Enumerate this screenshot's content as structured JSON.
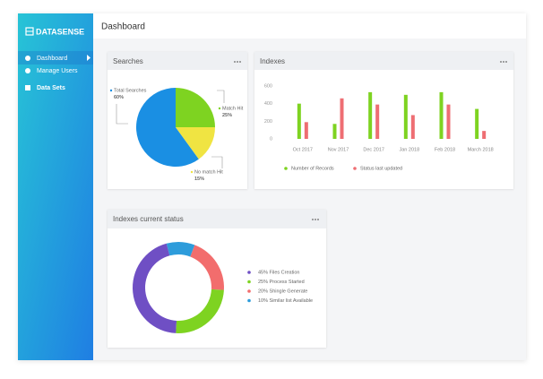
{
  "sidebar": {
    "brand": "DATASENSE",
    "nav": [
      "Dashboard",
      "Manage Users",
      "Data Sets"
    ]
  },
  "header": {
    "title": "Dashboard"
  },
  "chart_data": [
    {
      "type": "pie",
      "title": "Searches",
      "categories": [
        "Total Searches",
        "Match Hit",
        "No match Hit"
      ],
      "values": [
        60,
        25,
        15
      ],
      "value_labels": [
        "60%",
        "25%",
        "15%"
      ],
      "colors": [
        "#1a8fe3",
        "#7ed321",
        "#f0e442"
      ]
    },
    {
      "type": "bar",
      "title": "Indexes",
      "categories": [
        "Oct 2017",
        "Nov 2017",
        "Dec 2017",
        "Jan 2018",
        "Feb 2018",
        "March 2018"
      ],
      "series": [
        {
          "name": "Number of Records",
          "color": "#7ed321",
          "values": [
            400,
            170,
            530,
            500,
            530,
            340
          ]
        },
        {
          "name": "Status last updated",
          "color": "#ee6e73",
          "values": [
            190,
            460,
            390,
            270,
            390,
            90
          ]
        }
      ],
      "ylim": [
        0,
        600
      ],
      "yticks": [
        0,
        200,
        400,
        600
      ],
      "grid": false,
      "legend": "bottom"
    },
    {
      "type": "donut",
      "title": "Indexes current status",
      "categories": [
        "45% Files Creation",
        "25% Process Started",
        "20% Shingle Generate",
        "10% Similar list Available"
      ],
      "values": [
        45,
        25,
        20,
        10
      ],
      "colors": [
        "#6f4fc4",
        "#7ed321",
        "#f26d6d",
        "#2d9cdb"
      ],
      "legend": "right"
    }
  ]
}
